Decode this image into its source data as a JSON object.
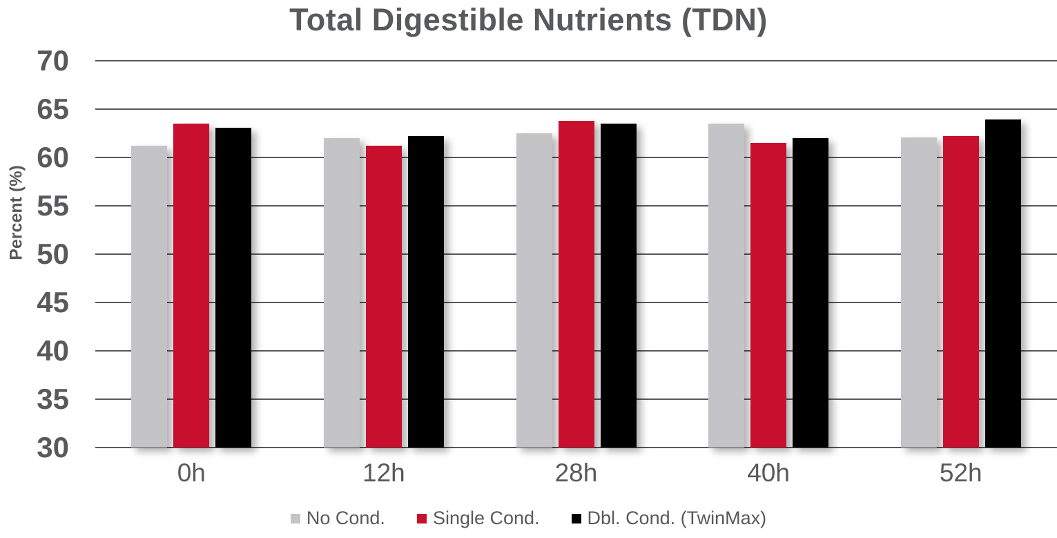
{
  "title": "Total Digestible Nutrients (TDN)",
  "colors": {
    "text_gray": "#58595B",
    "gridline": "#58595B",
    "series_no_cond": "#C4C4C6",
    "series_single_cond": "#C8102E",
    "series_dbl_cond": "#000000",
    "background": "#FFFFFF"
  },
  "chart_data": {
    "type": "bar",
    "title": "Total Digestible Nutrients (TDN)",
    "xlabel": "",
    "ylabel": "Percent (%)",
    "categories": [
      "0h",
      "12h",
      "28h",
      "40h",
      "52h"
    ],
    "series": [
      {
        "name": "No Cond.",
        "color": "#C4C4C6",
        "values": [
          61.2,
          62.0,
          62.5,
          63.5,
          62.1
        ]
      },
      {
        "name": "Single Cond.",
        "color": "#C8102E",
        "values": [
          63.5,
          61.2,
          63.8,
          61.5,
          62.2
        ]
      },
      {
        "name": "Dbl. Cond. (TwinMax)",
        "color": "#000000",
        "values": [
          63.1,
          62.2,
          63.5,
          62.0,
          63.9
        ]
      }
    ],
    "ylim": [
      30,
      70
    ],
    "yticks": [
      30,
      35,
      40,
      45,
      50,
      55,
      60,
      65,
      70
    ],
    "grid": true,
    "legend_position": "bottom"
  }
}
